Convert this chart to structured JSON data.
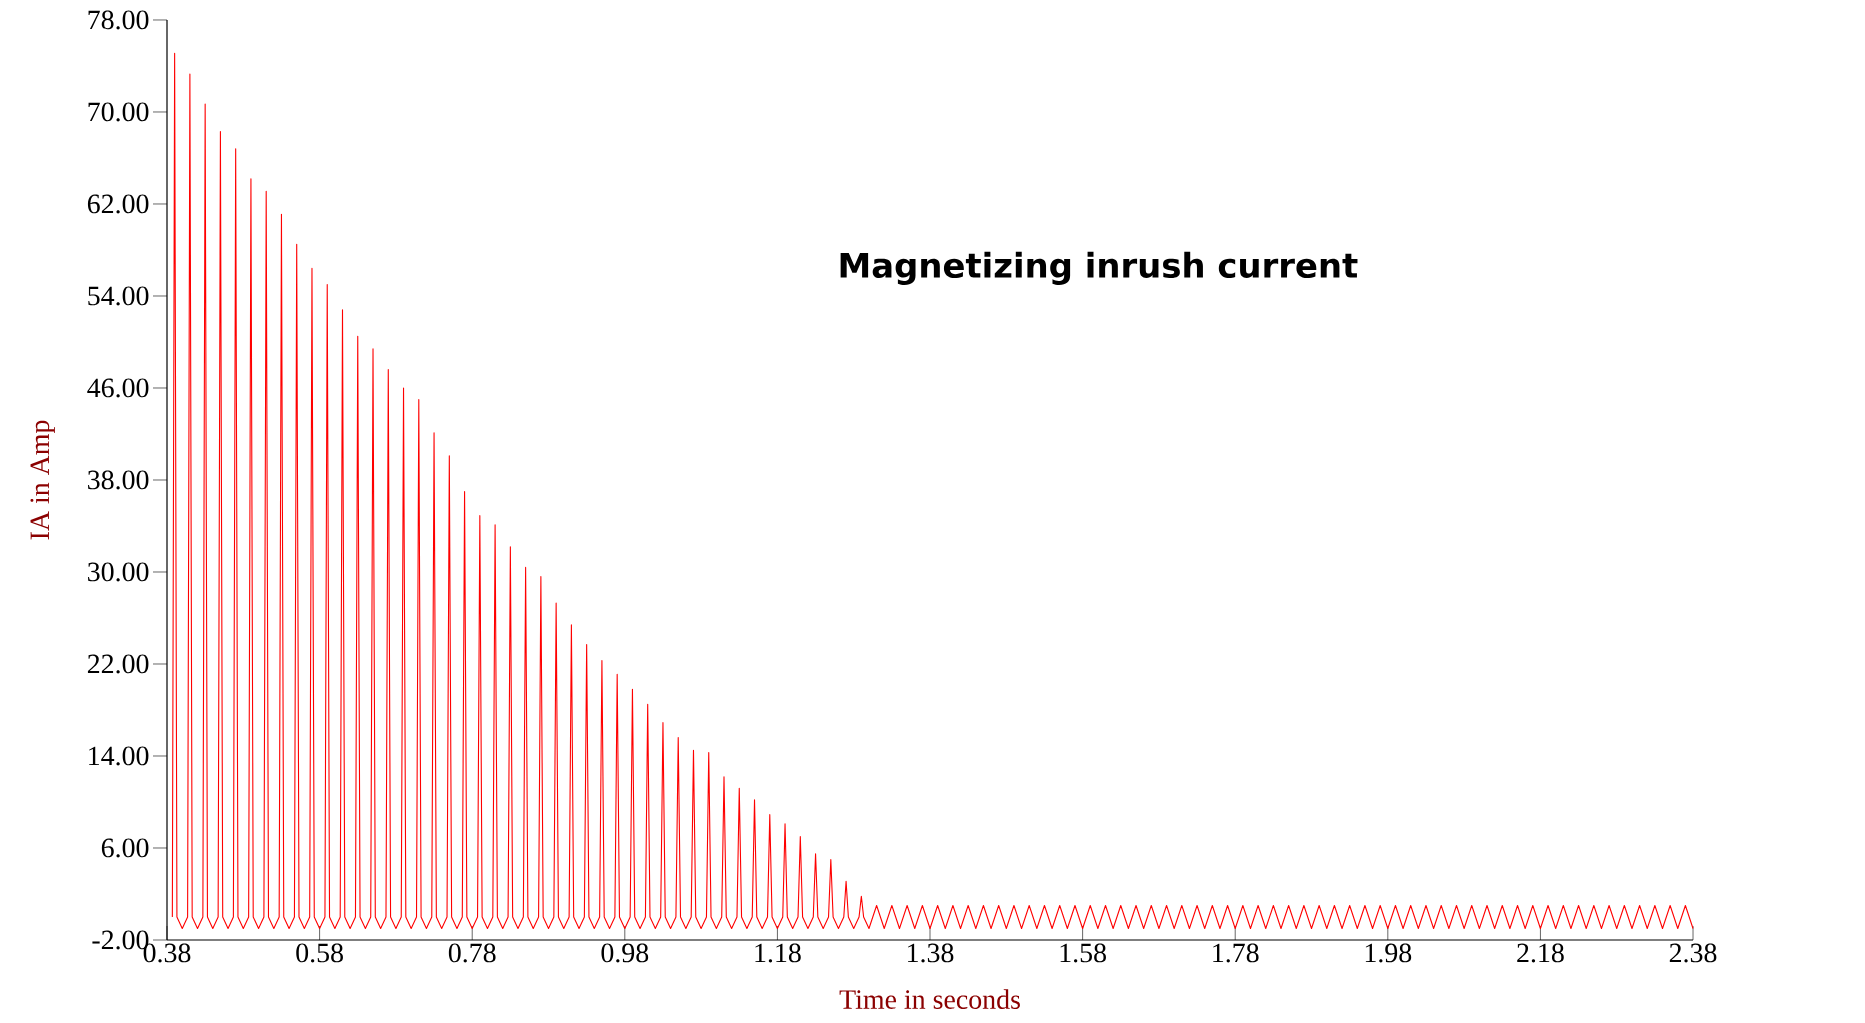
{
  "chart_data": {
    "type": "line",
    "xlabel": "Time in seconds",
    "ylabel": "IA in Amp",
    "annotations": [
      "**Magnetizing inrush current**"
    ],
    "xlim": [
      0.38,
      2.38
    ],
    "ylim": [
      -2,
      78
    ],
    "xticks": [
      0.38,
      0.58,
      0.78,
      0.98,
      1.18,
      1.38,
      1.58,
      1.78,
      1.98,
      2.18,
      2.38
    ],
    "yticks": [
      {
        "value": -2,
        "label": "-2.00"
      },
      {
        "value": 6,
        "label": "6.00"
      },
      {
        "value": 14,
        "label": "14.00"
      },
      {
        "value": 22,
        "label": "22.00"
      },
      {
        "value": 30,
        "label": "30.00"
      },
      {
        "value": 38,
        "label": "38.00"
      },
      {
        "value": 46,
        "label": "46.00"
      },
      {
        "value": 54,
        "label": "54.00"
      },
      {
        "value": 62,
        "label": "62.00"
      },
      {
        "value": 70,
        "label": "70.00"
      },
      {
        "value": 78,
        "label": "78.00"
      }
    ],
    "series": [
      {
        "color": "#ff0000",
        "x": [
          0.387,
          0.39,
          0.393,
          0.4,
          0.407,
          0.41,
          0.413,
          0.42,
          0.427,
          0.43,
          0.433,
          0.44,
          0.447,
          0.45,
          0.453,
          0.46,
          0.467,
          0.47,
          0.473,
          0.48,
          0.487,
          0.49,
          0.493,
          0.5,
          0.507,
          0.51,
          0.513,
          0.52,
          0.527,
          0.53,
          0.533,
          0.54,
          0.547,
          0.55,
          0.553,
          0.56,
          0.567,
          0.57,
          0.573,
          0.58,
          0.587,
          0.59,
          0.593,
          0.6,
          0.607,
          0.61,
          0.613,
          0.62,
          0.627,
          0.63,
          0.633,
          0.64,
          0.647,
          0.65,
          0.653,
          0.66,
          0.667,
          0.67,
          0.673,
          0.68,
          0.687,
          0.69,
          0.693,
          0.7,
          0.707,
          0.71,
          0.713,
          0.72,
          0.727,
          0.73,
          0.733,
          0.74,
          0.747,
          0.75,
          0.753,
          0.76,
          0.767,
          0.77,
          0.773,
          0.78,
          0.787,
          0.79,
          0.793,
          0.8,
          0.807,
          0.81,
          0.813,
          0.82,
          0.827,
          0.83,
          0.833,
          0.84,
          0.847,
          0.85,
          0.853,
          0.86,
          0.867,
          0.87,
          0.873,
          0.88,
          0.887,
          0.89,
          0.893,
          0.9,
          0.907,
          0.91,
          0.913,
          0.92,
          0.927,
          0.93,
          0.933,
          0.94,
          0.947,
          0.95,
          0.953,
          0.96,
          0.967,
          0.97,
          0.973,
          0.98,
          0.987,
          0.99,
          0.993,
          1.0,
          1.007,
          1.01,
          1.013,
          1.02,
          1.027,
          1.03,
          1.033,
          1.04,
          1.047,
          1.05,
          1.053,
          1.06,
          1.067,
          1.07,
          1.073,
          1.08,
          1.087,
          1.09,
          1.093,
          1.1,
          1.107,
          1.11,
          1.113,
          1.12,
          1.127,
          1.13,
          1.133,
          1.14,
          1.147,
          1.15,
          1.153,
          1.16,
          1.167,
          1.17,
          1.173,
          1.18,
          1.187,
          1.19,
          1.193,
          1.2,
          1.207,
          1.21,
          1.213,
          1.22,
          1.227,
          1.23,
          1.233,
          1.24,
          1.247,
          1.25,
          1.253,
          1.26,
          1.267,
          1.27,
          1.273,
          1.28,
          1.287,
          1.29,
          1.293,
          1.3,
          1.31,
          1.32,
          1.33,
          1.34,
          1.35,
          1.36,
          1.37,
          1.38,
          1.39,
          1.4,
          1.41,
          1.42,
          1.43,
          1.44,
          1.45,
          1.46,
          1.47,
          1.48,
          1.49,
          1.5,
          1.51,
          1.52,
          1.53,
          1.54,
          1.55,
          1.56,
          1.57,
          1.58,
          1.59,
          1.6,
          1.61,
          1.62,
          1.63,
          1.64,
          1.65,
          1.66,
          1.67,
          1.68,
          1.69,
          1.7,
          1.71,
          1.72,
          1.73,
          1.74,
          1.75,
          1.76,
          1.77,
          1.78,
          1.79,
          1.8,
          1.81,
          1.82,
          1.83,
          1.84,
          1.85,
          1.86,
          1.87,
          1.88,
          1.89,
          1.9,
          1.91,
          1.92,
          1.93,
          1.94,
          1.95,
          1.96,
          1.97,
          1.98,
          1.99,
          2.0,
          2.01,
          2.02,
          2.03,
          2.04,
          2.05,
          2.06,
          2.07,
          2.08,
          2.09,
          2.1,
          2.11,
          2.12,
          2.13,
          2.14,
          2.15,
          2.16,
          2.17,
          2.18,
          2.19,
          2.2,
          2.21,
          2.22,
          2.23,
          2.24,
          2.25,
          2.26,
          2.27,
          2.28,
          2.29,
          2.3,
          2.31,
          2.32,
          2.33,
          2.34,
          2.35,
          2.36,
          2.37,
          2.38
        ],
        "values": [
          0,
          75.1,
          0,
          -1,
          0,
          73.3,
          0,
          -1,
          0,
          70.7,
          0,
          -1,
          0,
          68.3,
          0,
          -1,
          0,
          66.8,
          0,
          -1,
          0,
          64.2,
          0,
          -1,
          0,
          63.1,
          0,
          -1,
          0,
          61.1,
          0,
          -1,
          0,
          58.5,
          0,
          -1,
          0,
          56.4,
          0,
          -1,
          0,
          55.0,
          0,
          -1,
          0,
          52.8,
          0,
          -1,
          0,
          50.5,
          0,
          -1,
          0,
          49.4,
          0,
          -1,
          0,
          47.6,
          0,
          -1,
          0,
          46.0,
          0,
          -1,
          0,
          45.0,
          0,
          -1,
          0,
          42.1,
          0,
          -1,
          0,
          40.1,
          0,
          -1,
          0,
          37.0,
          0,
          -1,
          0,
          34.9,
          0,
          -1,
          0,
          34.1,
          0,
          -1,
          0,
          32.2,
          0,
          -1,
          0,
          30.4,
          0,
          -1,
          0,
          29.6,
          0,
          -1,
          0,
          27.3,
          0,
          -1,
          0,
          25.4,
          0,
          -1,
          0,
          23.7,
          0,
          -1,
          0,
          22.3,
          0,
          -1,
          0,
          21.1,
          0,
          -1,
          0,
          19.8,
          0,
          -1,
          0,
          18.5,
          0,
          -1,
          0,
          16.9,
          0,
          -1,
          0,
          15.6,
          0,
          -1,
          0,
          14.5,
          0,
          -1,
          0,
          14.3,
          0,
          -1,
          0,
          12.2,
          0,
          -1,
          0,
          11.2,
          0,
          -1,
          0,
          10.2,
          0,
          -1,
          0,
          8.9,
          0,
          -1,
          0,
          8.1,
          0,
          -1,
          0,
          7.0,
          0,
          -1,
          0,
          5.5,
          0,
          -1,
          0,
          5.0,
          0,
          -1,
          0,
          3.1,
          0,
          -1,
          0,
          1.8,
          0,
          -1,
          1,
          -1,
          1,
          -1,
          1,
          -1,
          1,
          -1,
          1,
          -1,
          1,
          -1,
          1,
          -1,
          1,
          -1,
          1,
          -1,
          1,
          -1,
          1,
          -1,
          1,
          -1,
          1,
          -1,
          1,
          -1,
          1,
          -1,
          1,
          -1,
          1,
          -1,
          1,
          -1,
          1,
          -1,
          1,
          -1,
          1,
          -1,
          1,
          -1,
          1,
          -1,
          1,
          -1,
          1,
          -1,
          1,
          -1,
          1,
          -1,
          1,
          -1,
          1,
          -1,
          1,
          -1,
          1,
          -1,
          1,
          -1,
          1,
          -1,
          1,
          -1,
          1,
          -1,
          1,
          -1,
          1,
          -1,
          1,
          -1,
          1,
          -1,
          1,
          -1,
          1,
          -1,
          1,
          -1,
          1,
          -1,
          1,
          -1,
          1,
          -1,
          1,
          -1,
          1,
          -1,
          1,
          -1,
          1,
          -1,
          1,
          -1,
          1,
          -1,
          1,
          -1,
          1,
          -1,
          1,
          -1
        ]
      }
    ]
  }
}
